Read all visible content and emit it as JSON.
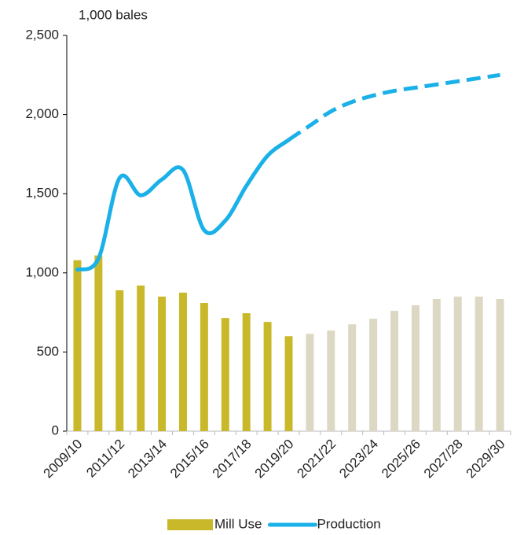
{
  "chart_data": {
    "type": "bar_line",
    "unit_label": "1,000 bales",
    "categories": [
      "2009/10",
      null,
      "2011/12",
      null,
      "2013/14",
      null,
      "2015/16",
      null,
      "2017/18",
      null,
      "2019/20",
      null,
      "2021/22",
      null,
      "2023/24",
      null,
      "2025/26",
      null,
      "2027/28",
      null,
      "2029/30"
    ],
    "series": [
      {
        "name": "Mill Use",
        "type": "bar",
        "color": "#c9b92a",
        "colors": [
          "#c9b92a",
          "#c9b92a",
          "#c9b92a",
          "#c9b92a",
          "#c9b92a",
          "#c9b92a",
          "#c9b92a",
          "#c9b92a",
          "#c9b92a",
          "#c9b92a",
          "#c9b92a",
          "#ddd8c4",
          "#ddd8c4",
          "#ddd8c4",
          "#ddd8c4",
          "#ddd8c4",
          "#ddd8c4",
          "#ddd8c4",
          "#ddd8c4",
          "#ddd8c4",
          "#ddd8c4"
        ],
        "values": [
          1080,
          1110,
          890,
          920,
          850,
          875,
          810,
          715,
          745,
          690,
          600,
          615,
          635,
          675,
          710,
          760,
          795,
          835,
          850,
          850,
          835
        ]
      },
      {
        "name": "Production",
        "type": "line",
        "color": "#1ab0e8",
        "line_styles": [
          "solid",
          "solid",
          "solid",
          "solid",
          "solid",
          "solid",
          "solid",
          "solid",
          "solid",
          "solid",
          "solid",
          "dashed",
          "dashed",
          "dashed",
          "dashed",
          "dashed",
          "dashed",
          "dashed",
          "dashed",
          "dashed",
          "dashed"
        ],
        "values": [
          1020,
          1090,
          1600,
          1490,
          1590,
          1650,
          1270,
          1330,
          1550,
          1740,
          1840,
          1930,
          2020,
          2080,
          2120,
          2150,
          2170,
          2190,
          2210,
          2230,
          2250
        ]
      }
    ],
    "ylim": [
      0,
      2500
    ],
    "yticks": [
      0,
      500,
      {
        "value": 1000,
        "label": "1,000"
      },
      {
        "value": 1500,
        "label": "1,500"
      },
      {
        "value": 2000,
        "label": "2,000"
      },
      {
        "value": 2500,
        "label": "2,500"
      }
    ],
    "grid": false,
    "legend": "bottom"
  }
}
